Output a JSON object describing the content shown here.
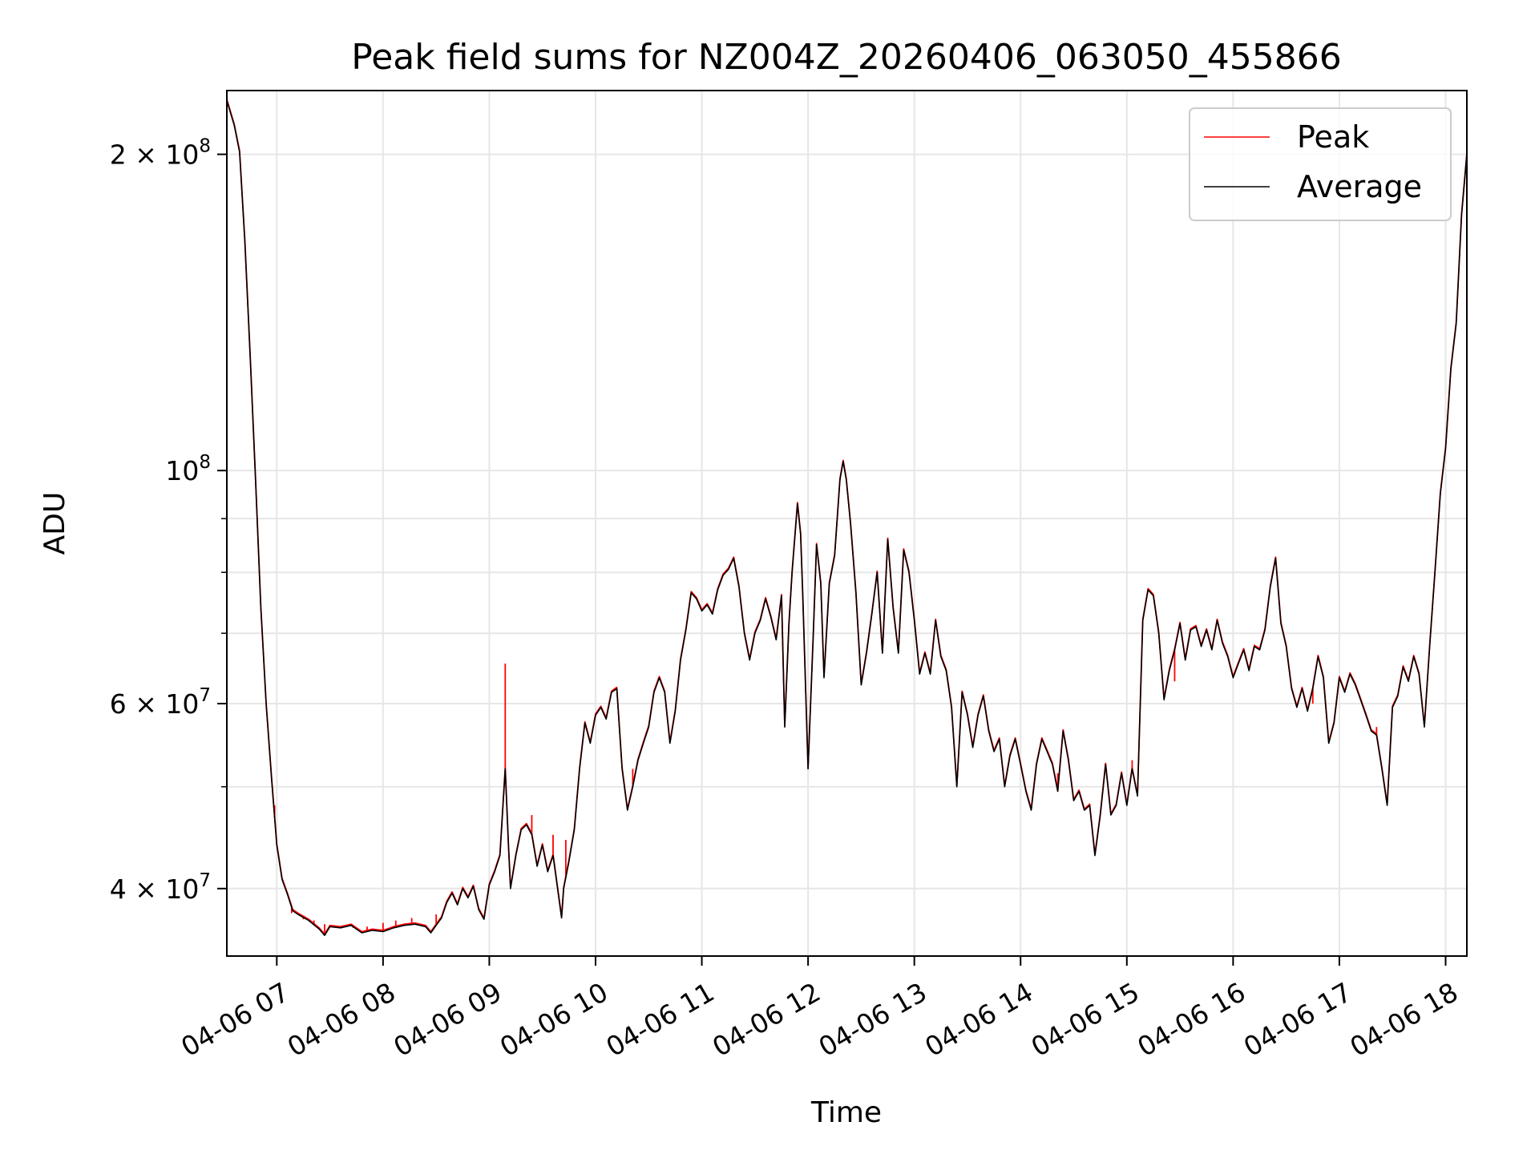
{
  "chart_data": {
    "type": "line",
    "title": "Peak field sums for NZ004Z_20260406_063050_455866",
    "xlabel": "Time",
    "ylabel": "ADU",
    "yscale": "log",
    "ylim": [
      34500000,
      230000000
    ],
    "xlim_hours": [
      6.53,
      18.2
    ],
    "grid": true,
    "legend_position": "top-right",
    "x_tick_labels": [
      "04-06 07",
      "04-06 08",
      "04-06 09",
      "04-06 10",
      "04-06 11",
      "04-06 12",
      "04-06 13",
      "04-06 14",
      "04-06 15",
      "04-06 16",
      "04-06 17",
      "04-06 18"
    ],
    "x_tick_hours": [
      7,
      8,
      9,
      10,
      11,
      12,
      13,
      14,
      15,
      16,
      17,
      18
    ],
    "y_major_ticks": [
      {
        "value": 40000000,
        "label_base": "4 × 10",
        "label_exp": "7"
      },
      {
        "value": 60000000,
        "label_base": "6 × 10",
        "label_exp": "7"
      },
      {
        "value": 100000000,
        "label_base": "10",
        "label_exp": "8"
      },
      {
        "value": 200000000,
        "label_base": "2 × 10",
        "label_exp": "8"
      }
    ],
    "y_minor_grid": [
      50000000,
      70000000,
      80000000,
      90000000
    ],
    "series": [
      {
        "name": "Peak",
        "color": "#ff0000",
        "spikes": [
          {
            "x": 6.98,
            "y": 48000000
          },
          {
            "x": 7.14,
            "y": 37900000
          },
          {
            "x": 7.25,
            "y": 37400000
          },
          {
            "x": 7.35,
            "y": 37300000
          },
          {
            "x": 7.45,
            "y": 37000000
          },
          {
            "x": 7.72,
            "y": 36700000
          },
          {
            "x": 7.85,
            "y": 36800000
          },
          {
            "x": 8.0,
            "y": 37100000
          },
          {
            "x": 8.12,
            "y": 37300000
          },
          {
            "x": 8.27,
            "y": 37500000
          },
          {
            "x": 8.5,
            "y": 37800000
          },
          {
            "x": 9.15,
            "y": 65500000
          },
          {
            "x": 9.4,
            "y": 47000000
          },
          {
            "x": 9.6,
            "y": 45000000
          },
          {
            "x": 9.72,
            "y": 44500000
          },
          {
            "x": 10.35,
            "y": 52000000
          },
          {
            "x": 14.2,
            "y": 55500000
          },
          {
            "x": 14.35,
            "y": 51500000
          },
          {
            "x": 15.05,
            "y": 53000000
          },
          {
            "x": 15.45,
            "y": 63000000
          },
          {
            "x": 16.75,
            "y": 60000000
          },
          {
            "x": 17.35,
            "y": 57000000
          }
        ]
      },
      {
        "name": "Average",
        "color": "#000000",
        "points": [
          [
            6.53,
            225000000
          ],
          [
            6.6,
            213000000
          ],
          [
            6.65,
            201000000
          ],
          [
            6.7,
            165000000
          ],
          [
            6.75,
            128000000
          ],
          [
            6.8,
            98000000
          ],
          [
            6.85,
            74000000
          ],
          [
            6.9,
            60000000
          ],
          [
            6.95,
            51000000
          ],
          [
            7.0,
            44000000
          ],
          [
            7.05,
            40800000
          ],
          [
            7.1,
            39500000
          ],
          [
            7.15,
            38100000
          ],
          [
            7.2,
            37800000
          ],
          [
            7.3,
            37300000
          ],
          [
            7.4,
            36600000
          ],
          [
            7.45,
            36100000
          ],
          [
            7.5,
            36800000
          ],
          [
            7.6,
            36700000
          ],
          [
            7.7,
            36900000
          ],
          [
            7.8,
            36300000
          ],
          [
            7.9,
            36500000
          ],
          [
            8.0,
            36400000
          ],
          [
            8.1,
            36700000
          ],
          [
            8.2,
            36900000
          ],
          [
            8.3,
            37000000
          ],
          [
            8.4,
            36800000
          ],
          [
            8.45,
            36300000
          ],
          [
            8.5,
            36900000
          ],
          [
            8.55,
            37500000
          ],
          [
            8.6,
            38800000
          ],
          [
            8.65,
            39600000
          ],
          [
            8.7,
            38600000
          ],
          [
            8.75,
            40000000
          ],
          [
            8.8,
            39200000
          ],
          [
            8.85,
            40200000
          ],
          [
            8.9,
            38200000
          ],
          [
            8.95,
            37400000
          ],
          [
            9.0,
            40300000
          ],
          [
            9.05,
            41500000
          ],
          [
            9.1,
            43000000
          ],
          [
            9.15,
            52000000
          ],
          [
            9.18,
            44000000
          ],
          [
            9.2,
            40000000
          ],
          [
            9.25,
            43000000
          ],
          [
            9.3,
            45500000
          ],
          [
            9.35,
            46000000
          ],
          [
            9.4,
            45000000
          ],
          [
            9.45,
            42000000
          ],
          [
            9.5,
            44000000
          ],
          [
            9.55,
            41500000
          ],
          [
            9.6,
            43000000
          ],
          [
            9.65,
            39500000
          ],
          [
            9.68,
            37500000
          ],
          [
            9.7,
            40000000
          ],
          [
            9.75,
            42500000
          ],
          [
            9.8,
            45500000
          ],
          [
            9.85,
            52000000
          ],
          [
            9.9,
            57500000
          ],
          [
            9.95,
            55000000
          ],
          [
            10.0,
            58500000
          ],
          [
            10.05,
            59500000
          ],
          [
            10.1,
            58000000
          ],
          [
            10.15,
            61500000
          ],
          [
            10.2,
            62000000
          ],
          [
            10.25,
            52000000
          ],
          [
            10.3,
            47500000
          ],
          [
            10.35,
            50000000
          ],
          [
            10.4,
            53000000
          ],
          [
            10.45,
            55000000
          ],
          [
            10.5,
            57000000
          ],
          [
            10.55,
            61500000
          ],
          [
            10.6,
            63500000
          ],
          [
            10.65,
            61500000
          ],
          [
            10.7,
            55000000
          ],
          [
            10.75,
            59000000
          ],
          [
            10.8,
            66000000
          ],
          [
            10.85,
            70500000
          ],
          [
            10.9,
            76500000
          ],
          [
            10.95,
            75500000
          ],
          [
            11.0,
            73500000
          ],
          [
            11.05,
            74500000
          ],
          [
            11.1,
            73000000
          ],
          [
            11.15,
            77000000
          ],
          [
            11.2,
            79500000
          ],
          [
            11.25,
            80500000
          ],
          [
            11.3,
            82500000
          ],
          [
            11.35,
            77500000
          ],
          [
            11.4,
            70000000
          ],
          [
            11.45,
            66000000
          ],
          [
            11.5,
            70000000
          ],
          [
            11.55,
            72000000
          ],
          [
            11.6,
            75500000
          ],
          [
            11.65,
            72500000
          ],
          [
            11.7,
            69000000
          ],
          [
            11.75,
            76000000
          ],
          [
            11.78,
            57000000
          ],
          [
            11.82,
            71500000
          ],
          [
            11.85,
            80000000
          ],
          [
            11.9,
            93000000
          ],
          [
            11.93,
            87000000
          ],
          [
            11.95,
            76000000
          ],
          [
            12.0,
            52000000
          ],
          [
            12.05,
            70000000
          ],
          [
            12.08,
            85000000
          ],
          [
            12.12,
            78000000
          ],
          [
            12.15,
            63500000
          ],
          [
            12.2,
            78000000
          ],
          [
            12.25,
            83000000
          ],
          [
            12.3,
            98000000
          ],
          [
            12.33,
            102000000
          ],
          [
            12.36,
            98000000
          ],
          [
            12.4,
            89000000
          ],
          [
            12.45,
            76500000
          ],
          [
            12.5,
            62500000
          ],
          [
            12.55,
            67000000
          ],
          [
            12.6,
            73000000
          ],
          [
            12.65,
            80000000
          ],
          [
            12.7,
            67000000
          ],
          [
            12.75,
            86000000
          ],
          [
            12.8,
            74000000
          ],
          [
            12.85,
            67000000
          ],
          [
            12.9,
            84000000
          ],
          [
            12.95,
            80000000
          ],
          [
            13.0,
            72000000
          ],
          [
            13.05,
            64000000
          ],
          [
            13.1,
            67000000
          ],
          [
            13.15,
            64000000
          ],
          [
            13.2,
            72000000
          ],
          [
            13.25,
            66500000
          ],
          [
            13.3,
            64500000
          ],
          [
            13.35,
            59500000
          ],
          [
            13.4,
            50000000
          ],
          [
            13.45,
            61500000
          ],
          [
            13.5,
            58500000
          ],
          [
            13.55,
            54500000
          ],
          [
            13.6,
            58500000
          ],
          [
            13.65,
            61000000
          ],
          [
            13.7,
            56500000
          ],
          [
            13.75,
            54000000
          ],
          [
            13.8,
            55500000
          ],
          [
            13.85,
            50000000
          ],
          [
            13.9,
            53500000
          ],
          [
            13.95,
            55500000
          ],
          [
            14.0,
            52500000
          ],
          [
            14.05,
            49500000
          ],
          [
            14.1,
            47500000
          ],
          [
            14.15,
            52500000
          ],
          [
            14.2,
            55500000
          ],
          [
            14.25,
            54000000
          ],
          [
            14.3,
            52500000
          ],
          [
            14.35,
            49500000
          ],
          [
            14.4,
            56500000
          ],
          [
            14.45,
            53000000
          ],
          [
            14.5,
            48500000
          ],
          [
            14.55,
            49500000
          ],
          [
            14.6,
            47500000
          ],
          [
            14.65,
            48000000
          ],
          [
            14.7,
            43000000
          ],
          [
            14.75,
            47000000
          ],
          [
            14.8,
            52500000
          ],
          [
            14.85,
            47000000
          ],
          [
            14.9,
            48000000
          ],
          [
            14.95,
            51500000
          ],
          [
            15.0,
            48000000
          ],
          [
            15.05,
            52000000
          ],
          [
            15.1,
            49000000
          ],
          [
            15.15,
            72000000
          ],
          [
            15.2,
            77000000
          ],
          [
            15.25,
            76000000
          ],
          [
            15.3,
            70000000
          ],
          [
            15.35,
            60500000
          ],
          [
            15.4,
            64500000
          ],
          [
            15.45,
            67500000
          ],
          [
            15.5,
            71500000
          ],
          [
            15.55,
            66000000
          ],
          [
            15.6,
            70500000
          ],
          [
            15.65,
            71000000
          ],
          [
            15.7,
            68000000
          ],
          [
            15.75,
            70500000
          ],
          [
            15.8,
            67500000
          ],
          [
            15.85,
            72000000
          ],
          [
            15.9,
            68500000
          ],
          [
            15.95,
            66500000
          ],
          [
            16.0,
            63500000
          ],
          [
            16.05,
            65500000
          ],
          [
            16.1,
            67500000
          ],
          [
            16.15,
            64500000
          ],
          [
            16.2,
            68000000
          ],
          [
            16.25,
            67500000
          ],
          [
            16.3,
            70500000
          ],
          [
            16.35,
            77500000
          ],
          [
            16.4,
            82500000
          ],
          [
            16.45,
            71500000
          ],
          [
            16.5,
            68000000
          ],
          [
            16.55,
            62000000
          ],
          [
            16.6,
            59500000
          ],
          [
            16.65,
            62000000
          ],
          [
            16.7,
            59000000
          ],
          [
            16.75,
            62000000
          ],
          [
            16.8,
            66500000
          ],
          [
            16.85,
            63500000
          ],
          [
            16.9,
            55000000
          ],
          [
            16.95,
            57500000
          ],
          [
            17.0,
            63500000
          ],
          [
            17.05,
            61500000
          ],
          [
            17.1,
            64000000
          ],
          [
            17.15,
            62500000
          ],
          [
            17.2,
            60500000
          ],
          [
            17.25,
            58500000
          ],
          [
            17.3,
            56500000
          ],
          [
            17.35,
            56000000
          ],
          [
            17.4,
            52000000
          ],
          [
            17.45,
            48000000
          ],
          [
            17.5,
            59500000
          ],
          [
            17.55,
            61000000
          ],
          [
            17.6,
            65000000
          ],
          [
            17.65,
            63000000
          ],
          [
            17.7,
            66500000
          ],
          [
            17.75,
            64000000
          ],
          [
            17.8,
            57000000
          ],
          [
            17.85,
            68000000
          ],
          [
            17.9,
            80000000
          ],
          [
            17.95,
            95000000
          ],
          [
            18.0,
            105000000
          ],
          [
            18.05,
            125000000
          ],
          [
            18.1,
            138000000
          ],
          [
            18.15,
            175000000
          ],
          [
            18.2,
            200000000
          ]
        ]
      }
    ]
  }
}
